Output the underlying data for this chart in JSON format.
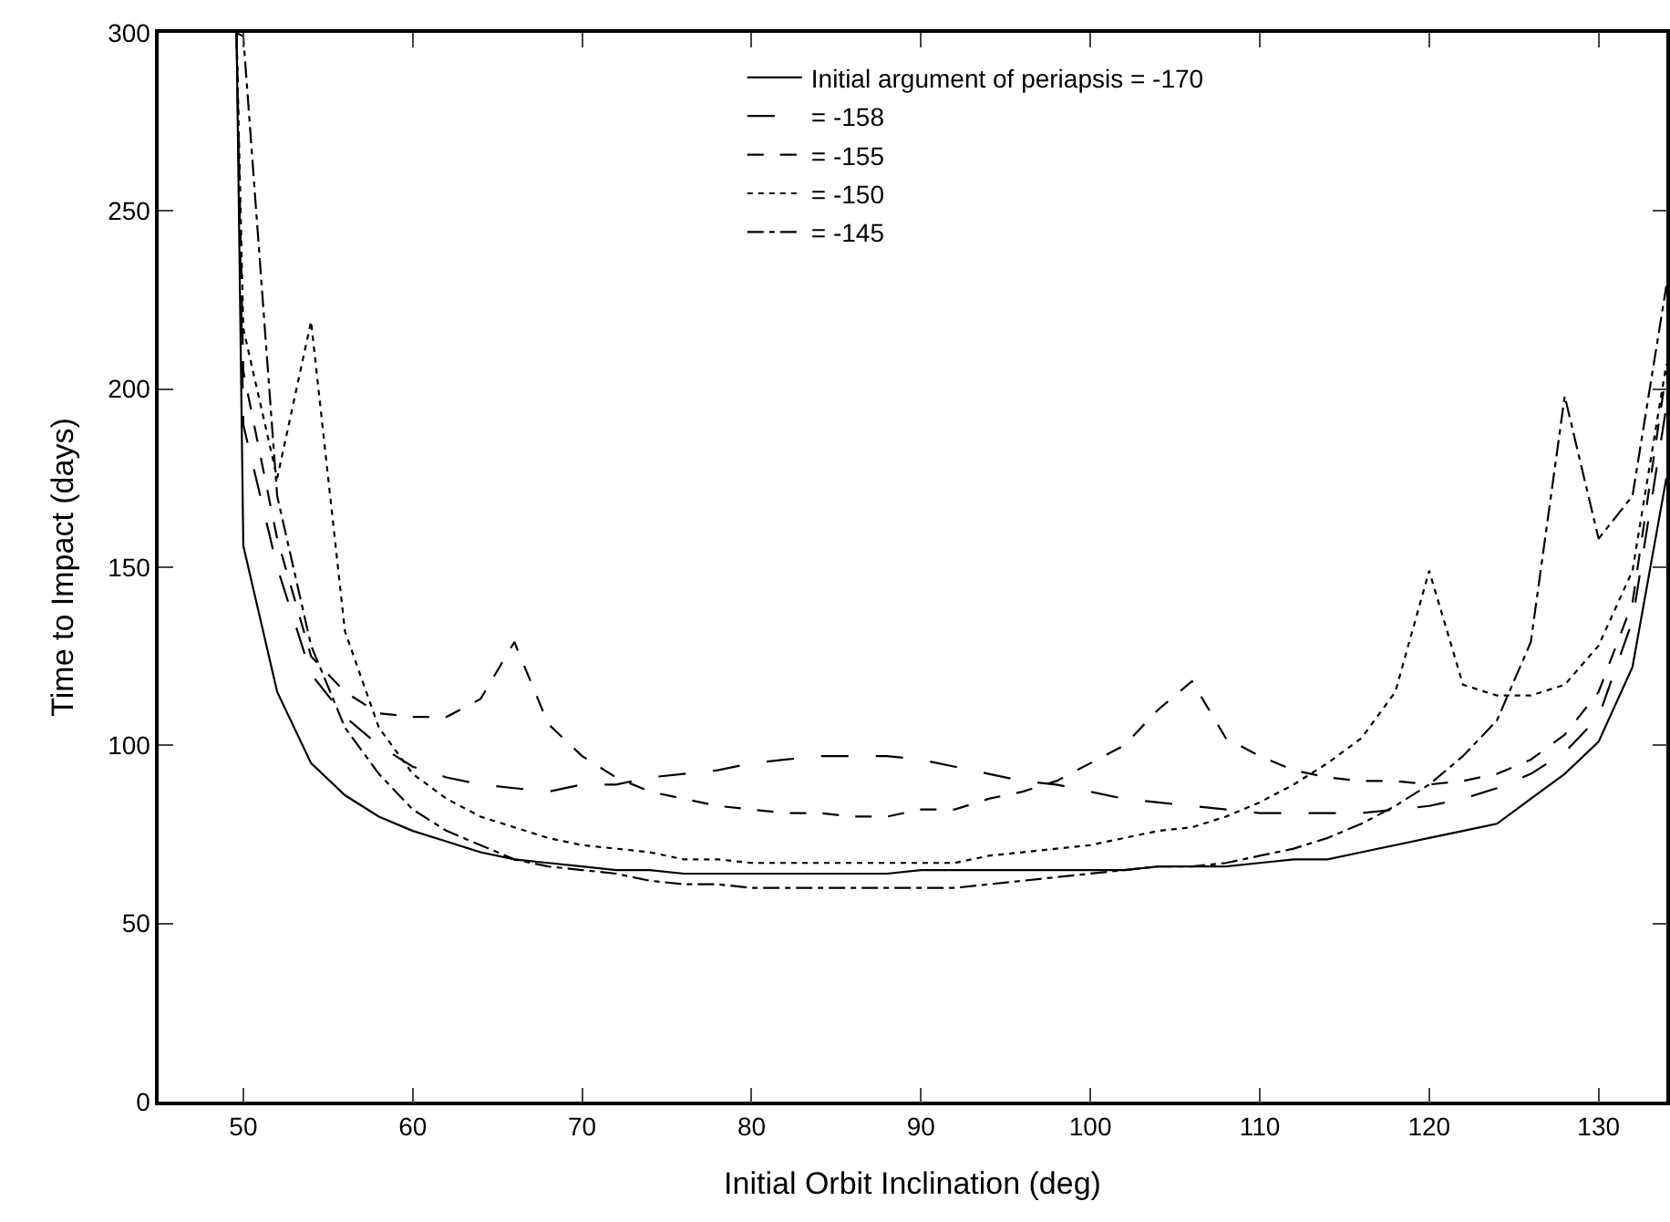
{
  "chart_data": {
    "type": "line",
    "xlabel": "Initial Orbit Inclination (deg)",
    "ylabel": "Time to Impact (days)",
    "x": [
      49.6,
      50,
      52,
      54,
      56,
      58,
      60,
      62,
      64,
      66,
      68,
      70,
      72,
      74,
      76,
      78,
      80,
      82,
      84,
      86,
      88,
      90,
      92,
      94,
      96,
      98,
      100,
      102,
      104,
      106,
      108,
      110,
      112,
      114,
      116,
      118,
      120,
      122,
      124,
      126,
      128,
      130,
      132,
      134
    ],
    "series": [
      {
        "name": "Initial argument of periapsis = -170",
        "color": "#000000",
        "line_style": "solid",
        "values": [
          300,
          156,
          115,
          95,
          86,
          80,
          76,
          73,
          70,
          68,
          67,
          66,
          65,
          65,
          64,
          64,
          64,
          64,
          64,
          64,
          64,
          65,
          65,
          65,
          65,
          65,
          65,
          65,
          66,
          66,
          66,
          67,
          68,
          68,
          70,
          72,
          74,
          76,
          78,
          85,
          92,
          101,
          122,
          175
        ]
      },
      {
        "name": "= -158",
        "color": "#000000",
        "line_style": "longdash",
        "values": [
          300,
          190,
          150,
          120,
          108,
          100,
          94,
          91,
          89,
          88,
          87,
          89,
          89,
          91,
          92,
          93,
          95,
          96,
          97,
          97,
          97,
          96,
          94,
          92,
          90,
          89,
          87,
          85,
          84,
          83,
          82,
          81,
          81,
          81,
          81,
          82,
          83,
          85,
          88,
          92,
          98,
          108,
          135,
          195
        ]
      },
      {
        "name": "= -155",
        "color": "#000000",
        "line_style": "dashed",
        "values": [
          300,
          205,
          158,
          125,
          115,
          109,
          108,
          108,
          113,
          129,
          106,
          97,
          91,
          87,
          85,
          83,
          82,
          81,
          81,
          80,
          80,
          82,
          82,
          85,
          87,
          90,
          95,
          100,
          110,
          118,
          102,
          97,
          93,
          91,
          90,
          90,
          89,
          90,
          92,
          96,
          103,
          115,
          140,
          205
        ]
      },
      {
        "name": "= -150",
        "color": "#000000",
        "line_style": "dotted",
        "values": [
          300,
          217,
          175,
          219,
          132,
          105,
          92,
          85,
          80,
          77,
          74,
          72,
          71,
          70,
          68,
          68,
          67,
          67,
          67,
          67,
          67,
          67,
          67,
          69,
          70,
          71,
          72,
          74,
          76,
          77,
          80,
          84,
          89,
          95,
          102,
          115,
          149,
          117,
          114,
          114,
          117,
          128,
          149,
          207
        ]
      },
      {
        "name": "= -145",
        "color": "#000000",
        "line_style": "dashdot",
        "values": [
          300,
          299,
          170,
          128,
          105,
          92,
          82,
          76,
          72,
          68,
          66,
          65,
          64,
          62,
          61,
          61,
          60,
          60,
          60,
          60,
          60,
          60,
          60,
          61,
          62,
          63,
          64,
          65,
          66,
          66,
          67,
          69,
          71,
          74,
          78,
          83,
          89,
          97,
          107,
          129,
          198,
          158,
          170,
          229
        ]
      }
    ],
    "xlim": [
      45,
      134
    ],
    "xticks": [
      50,
      60,
      70,
      80,
      90,
      100,
      110,
      120,
      130
    ],
    "ylim": [
      0,
      300
    ],
    "yticks": [
      0,
      50,
      100,
      150,
      200,
      250,
      300
    ],
    "grid": false,
    "legend": "top right",
    "marker": "none"
  }
}
